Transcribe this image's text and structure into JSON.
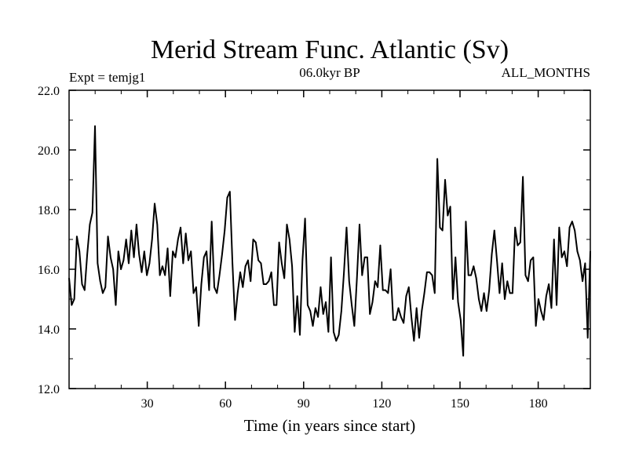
{
  "chart_data": {
    "type": "line",
    "title": "Merid Stream Func. Atlantic (Sv)",
    "expt_label": "Expt = temjg1",
    "period_label": "06.0kyr BP",
    "months_label": "ALL_MONTHS",
    "xlabel": "Time (in years since start)",
    "ylabel": "",
    "xlim": [
      0,
      200
    ],
    "ylim": [
      12.0,
      22.0
    ],
    "x_ticks": [
      30,
      60,
      90,
      120,
      150,
      180
    ],
    "x_tick_labels": [
      "30",
      "60",
      "90",
      "120",
      "150",
      "180"
    ],
    "y_ticks": [
      12,
      14,
      16,
      18,
      20,
      22
    ],
    "y_tick_labels": [
      "12.0",
      "14.0",
      "16.0",
      "18.0",
      "20.0",
      "22.0"
    ],
    "series": [
      {
        "name": "Merid Stream Func. Atlantic",
        "color": "#000000",
        "values": [
          15.7,
          14.8,
          15.0,
          17.1,
          16.6,
          15.5,
          15.3,
          16.5,
          17.5,
          17.9,
          20.8,
          16.2,
          15.6,
          15.2,
          15.4,
          17.1,
          16.4,
          16.0,
          14.8,
          16.6,
          16.0,
          16.3,
          17.0,
          16.2,
          17.3,
          16.4,
          17.5,
          16.5,
          15.9,
          16.6,
          15.8,
          16.2,
          17.0,
          18.2,
          17.5,
          15.8,
          16.1,
          15.8,
          16.7,
          15.1,
          16.6,
          16.4,
          17.0,
          17.4,
          16.2,
          17.2,
          16.3,
          16.6,
          15.2,
          15.4,
          14.1,
          15.5,
          16.4,
          16.6,
          15.3,
          17.6,
          15.4,
          15.2,
          15.8,
          16.5,
          17.3,
          18.4,
          18.6,
          16.2,
          14.3,
          15.2,
          15.9,
          15.4,
          16.1,
          16.3,
          15.6,
          17.0,
          16.9,
          16.3,
          16.2,
          15.5,
          15.5,
          15.6,
          15.9,
          14.8,
          14.8,
          16.9,
          16.2,
          15.7,
          17.5,
          17.0,
          16.1,
          13.9,
          15.1,
          13.8,
          16.3,
          17.7,
          14.8,
          14.6,
          14.1,
          14.7,
          14.4,
          15.4,
          14.5,
          14.9,
          13.9,
          16.4,
          13.9,
          13.6,
          13.8,
          14.6,
          15.9,
          17.4,
          15.6,
          14.8,
          14.1,
          15.7,
          17.5,
          15.8,
          16.4,
          16.4,
          14.5,
          14.9,
          15.6,
          15.4,
          16.8,
          15.3,
          15.3,
          15.2,
          16.0,
          14.3,
          14.3,
          14.7,
          14.4,
          14.2,
          15.1,
          15.4,
          14.4,
          13.6,
          14.7,
          13.7,
          14.6,
          15.2,
          15.9,
          15.9,
          15.8,
          15.2,
          19.7,
          17.4,
          17.3,
          19.0,
          17.8,
          18.1,
          15.0,
          16.4,
          14.9,
          14.3,
          13.1,
          17.6,
          15.8,
          15.8,
          16.1,
          15.7,
          15.0,
          14.6,
          15.2,
          14.6,
          15.3,
          16.5,
          17.3,
          16.3,
          15.2,
          16.2,
          15.0,
          15.6,
          15.2,
          15.2,
          17.4,
          16.8,
          16.9,
          19.1,
          15.8,
          15.6,
          16.3,
          16.4,
          14.1,
          15.0,
          14.6,
          14.3,
          15.1,
          15.5,
          14.7,
          17.0,
          14.8,
          17.4,
          16.4,
          16.6,
          16.1,
          17.4,
          17.6,
          17.3,
          16.6,
          16.3,
          15.6,
          16.2,
          13.7,
          16.6
        ]
      }
    ]
  }
}
